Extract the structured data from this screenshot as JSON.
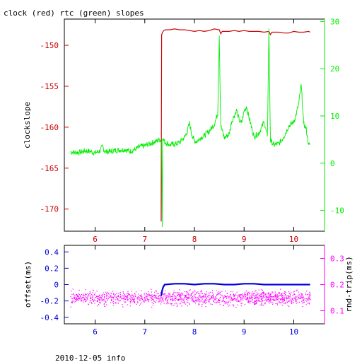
{
  "title": "clock (red) rtc (green) slopes",
  "footer": "2010-12-05 info",
  "colors": {
    "clock": "#cc0000",
    "rtc": "#00ee00",
    "offset": "#0000dd",
    "rndtrip": "#ff00ff",
    "frame": "#000000"
  },
  "chart_data": [
    {
      "type": "line",
      "title": "clock (red) rtc (green) slopes",
      "ylabel": "clockslope",
      "y2label": "",
      "xlim": [
        5.38,
        10.62
      ],
      "ylim": [
        -172.7,
        -146.8
      ],
      "y2lim": [
        -14.4,
        30.5
      ],
      "xticks": [
        "6",
        "7",
        "8",
        "9",
        "10"
      ],
      "yticks": [
        "-150",
        "-155",
        "-160",
        "-165",
        "-170"
      ],
      "y2ticks": [
        "30",
        "20",
        "10",
        "0",
        "-10"
      ],
      "series": [
        {
          "axis": "left",
          "x": [
            7.33,
            7.34,
            7.36,
            7.38,
            7.42,
            7.5,
            7.6,
            7.7,
            7.8,
            7.9,
            8.0,
            8.1,
            8.2,
            8.3,
            8.4,
            8.5,
            8.53,
            8.56,
            8.6,
            8.7,
            8.8,
            8.9,
            9.0,
            9.1,
            9.2,
            9.3,
            9.4,
            9.5,
            9.53,
            9.56,
            9.6,
            9.7,
            9.8,
            9.9,
            10.0,
            10.1,
            10.2,
            10.3,
            10.33
          ],
          "values": [
            -171.5,
            -148.7,
            -148.4,
            -148.2,
            -148.1,
            -148.1,
            -148.0,
            -148.1,
            -148.1,
            -148.2,
            -148.3,
            -148.2,
            -148.3,
            -148.2,
            -148.0,
            -148.1,
            -148.6,
            -148.3,
            -148.3,
            -148.3,
            -148.2,
            -148.3,
            -148.2,
            -148.3,
            -148.3,
            -148.3,
            -148.4,
            -148.3,
            -148.7,
            -148.4,
            -148.4,
            -148.4,
            -148.5,
            -148.5,
            -148.3,
            -148.4,
            -148.4,
            -148.3,
            -148.4
          ]
        },
        {
          "axis": "right",
          "x": [
            5.5,
            5.6,
            5.7,
            5.8,
            5.9,
            6.0,
            6.1,
            6.15,
            6.2,
            6.3,
            6.4,
            6.5,
            6.6,
            6.7,
            6.8,
            6.9,
            7.0,
            7.1,
            7.2,
            7.3,
            7.34,
            7.35,
            7.36,
            7.4,
            7.5,
            7.6,
            7.7,
            7.8,
            7.85,
            7.9,
            7.95,
            8.0,
            8.05,
            8.1,
            8.2,
            8.3,
            8.4,
            8.47,
            8.5,
            8.53,
            8.6,
            8.7,
            8.75,
            8.8,
            8.85,
            8.9,
            8.95,
            9.0,
            9.05,
            9.1,
            9.2,
            9.3,
            9.4,
            9.47,
            9.5,
            9.53,
            9.6,
            9.7,
            9.8,
            9.9,
            10.0,
            10.05,
            10.1,
            10.15,
            10.2,
            10.25,
            10.3,
            10.33
          ],
          "values": [
            2.4,
            2.3,
            2.3,
            2.6,
            2.5,
            2.2,
            2.6,
            3.6,
            2.4,
            2.5,
            2.7,
            2.8,
            2.9,
            2.5,
            2.9,
            3.5,
            3.7,
            4.1,
            4.5,
            5.0,
            4.7,
            -13.5,
            5.2,
            4.5,
            3.9,
            4.0,
            4.4,
            5.5,
            6.5,
            8.5,
            6.0,
            4.7,
            4.6,
            5.2,
            5.9,
            6.8,
            8.2,
            10.6,
            27.0,
            8.0,
            5.3,
            6.2,
            8.8,
            10.0,
            11.3,
            9.1,
            8.5,
            11.0,
            12.0,
            9.6,
            5.6,
            6.4,
            8.7,
            5.7,
            28.5,
            4.8,
            3.9,
            4.1,
            5.6,
            7.9,
            8.7,
            10.4,
            12.5,
            16.6,
            8.4,
            7.3,
            3.9,
            4.0
          ]
        }
      ]
    },
    {
      "type": "scatter",
      "ylabel": "offset(ms)",
      "y2label": "rnd-trip(ms)",
      "xlim": [
        5.38,
        10.62
      ],
      "ylim": [
        -0.48,
        0.48
      ],
      "y2lim": [
        0.05,
        0.35
      ],
      "xticks": [
        "6",
        "7",
        "8",
        "9",
        "10"
      ],
      "yticks": [
        "0.4",
        "0.2",
        "0",
        "-0.2",
        "-0.4"
      ],
      "y2ticks": [
        "0.3",
        "0.2",
        "0.1"
      ],
      "series": [
        {
          "axis": "left",
          "x": [
            7.33,
            7.35,
            7.37,
            7.4,
            7.6,
            7.8,
            8.0,
            8.2,
            8.4,
            8.6,
            8.8,
            9.0,
            9.2,
            9.4,
            9.6,
            9.8,
            10.0,
            10.2,
            10.33
          ],
          "values": [
            -0.14,
            -0.07,
            -0.03,
            0.0,
            0.01,
            0.01,
            0.0,
            0.01,
            0.01,
            0.0,
            0.0,
            0.01,
            0.01,
            0.0,
            0.0,
            0.0,
            0.0,
            0.0,
            0.0
          ]
        },
        {
          "axis": "right",
          "x": [
            5.5,
            10.33
          ],
          "values": [
            0.11,
            0.19
          ]
        }
      ]
    }
  ]
}
